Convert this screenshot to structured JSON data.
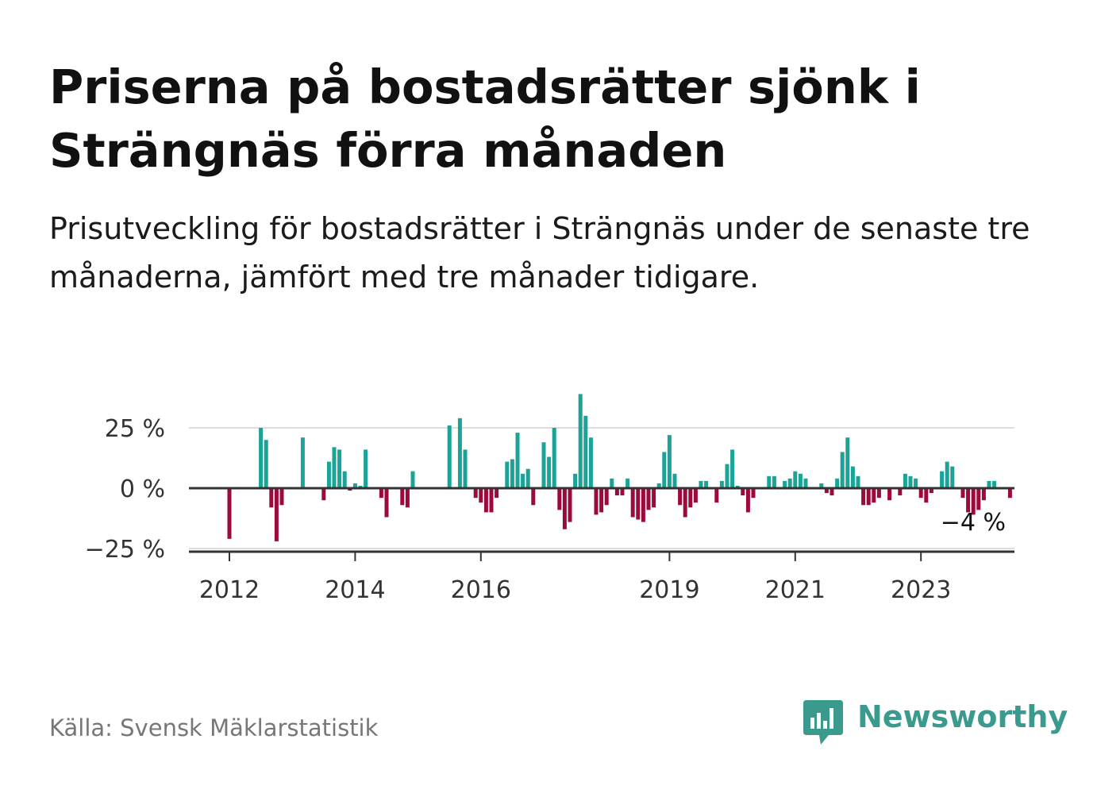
{
  "title": "Priserna på bostadsrätter sjönk i Strängnäs förra månaden",
  "subtitle": "Prisutveckling för bostadsrätter i Strängnäs under de senaste tre månaderna, jämfört med tre månader tidigare.",
  "source": "Källa: Svensk Mäklarstatistik",
  "brand": "Newsworthy",
  "colors": {
    "positive": "#1aa396",
    "negative": "#9c0a3d",
    "grid": "#dddddd",
    "axis": "#333333",
    "brand": "#3b9a8e"
  },
  "chart_data": {
    "type": "bar",
    "x_axis": "monthly, 2012-01 to 2024-04",
    "x_ticks": [
      "2012",
      "2014",
      "2016",
      "2019",
      "2021",
      "2023"
    ],
    "y_ticks": [
      "25 %",
      "0 %",
      "−25 %"
    ],
    "ylim": [
      -25,
      40
    ],
    "grid": true,
    "annotation": "−4 %",
    "series": [
      {
        "values": [
          -21,
          0,
          0,
          0,
          0,
          0,
          25,
          20,
          -8,
          -22,
          -7,
          0,
          0,
          0,
          21,
          0,
          0,
          0,
          -5,
          11,
          17,
          16,
          7,
          -1,
          2,
          1,
          16,
          0,
          0,
          -4,
          -12,
          0,
          0,
          -7,
          -8,
          7,
          0,
          0,
          0,
          0,
          0,
          0,
          26,
          0,
          29,
          16,
          0,
          -4,
          -6,
          -10,
          -10,
          -4,
          0,
          11,
          12,
          23,
          6,
          8,
          -7,
          0,
          19,
          13,
          25,
          -9,
          -17,
          -14,
          6,
          39,
          30,
          21,
          -11,
          -10,
          -7,
          4,
          -3,
          -3,
          4,
          -12,
          -13,
          -14,
          -9,
          -8,
          2,
          15,
          22,
          6,
          -7,
          -12,
          -8,
          -6,
          3,
          3,
          0,
          -6,
          3,
          10,
          16,
          1,
          -3,
          -10,
          -4,
          0,
          0,
          5,
          5,
          0,
          3,
          4,
          7,
          6,
          4,
          0,
          0,
          2,
          -2,
          -3,
          4,
          15,
          21,
          9,
          5,
          -7,
          -7,
          -6,
          -4,
          0,
          -5,
          0,
          -3,
          6,
          5,
          4,
          -4,
          -6,
          -2,
          0,
          7,
          11,
          9,
          0,
          -4,
          -10,
          -11,
          -9,
          -5,
          3,
          3,
          0,
          0,
          -4
        ]
      }
    ]
  }
}
